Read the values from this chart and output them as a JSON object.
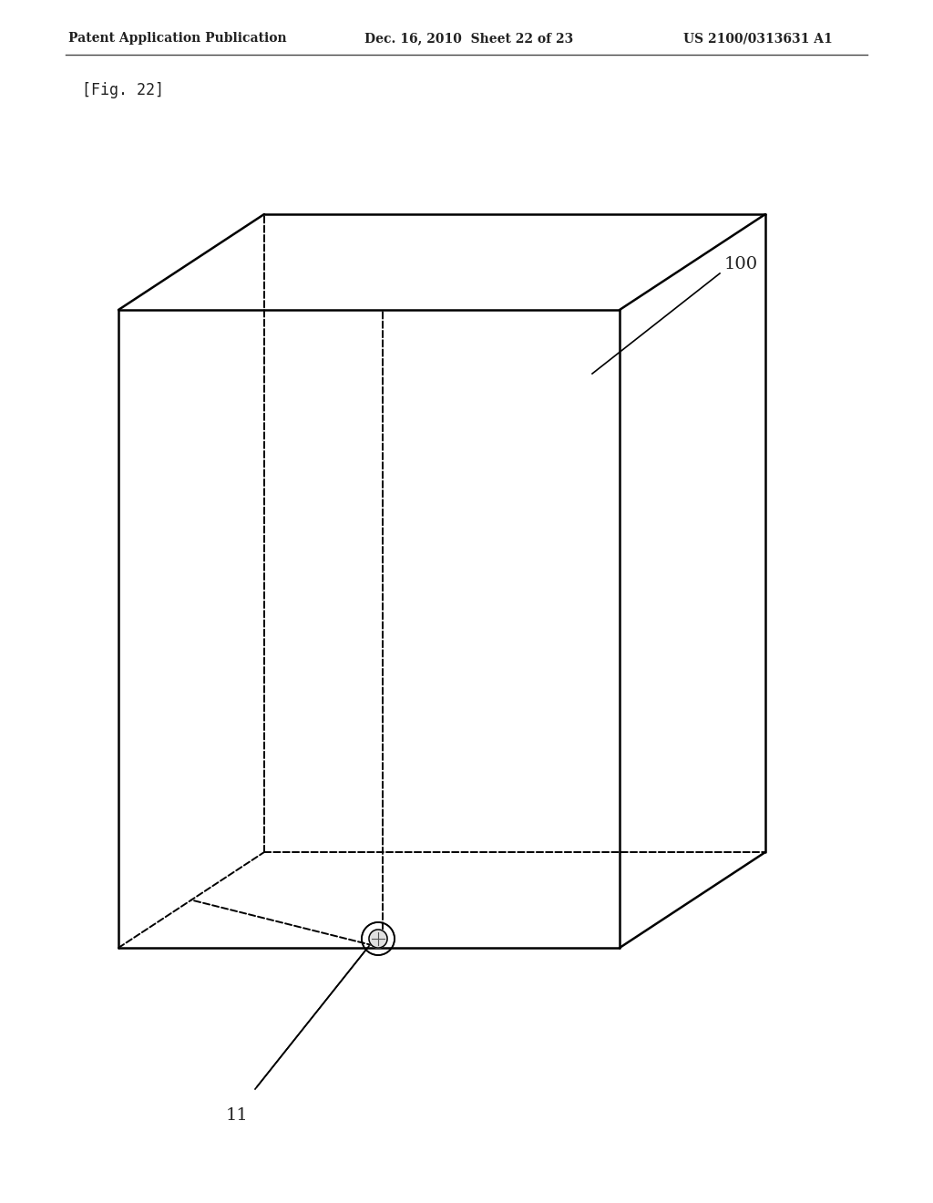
{
  "background_color": "#ffffff",
  "header_left": "Patent Application Publication",
  "header_center": "Dec. 16, 2010  Sheet 22 of 23",
  "header_right": "US 2100/0313631 A1",
  "fig_label": "[Fig. 22]",
  "label_100": "100",
  "label_11": "11",
  "line_color": "#000000",
  "dashed_color": "#000000"
}
